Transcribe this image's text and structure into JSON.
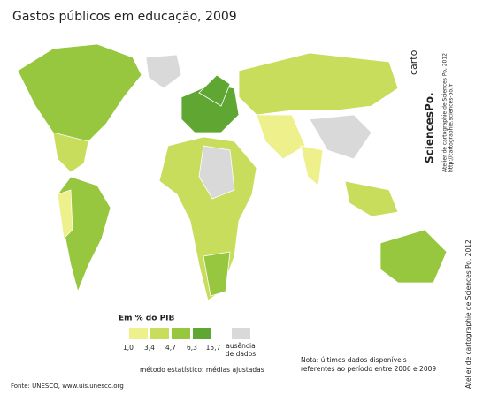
{
  "title": "Gastos públicos em educação, 2009",
  "legend": {
    "title": "Em % do PIB",
    "breaks": [
      "1,0",
      "3,4",
      "4,7",
      "6,3",
      "15,7"
    ],
    "colors": [
      "#eef08c",
      "#c9dd5c",
      "#97c63f",
      "#5fa732"
    ],
    "no_data": [
      "ausência",
      "de dados"
    ],
    "no_data_color": "#d9d9d9"
  },
  "method": "método estatístico: médias ajustadas",
  "note": [
    "Nota: últimos dados disponíveis",
    "referentes ao período entre 2006 e 2009"
  ],
  "source": "Fonte: UNESCO, www.uis.unesco.org",
  "credits": {
    "brand": "carto",
    "logo": "SciencesPo.",
    "atelier": "Atelier de cartographie de Sciences Po, 2012",
    "url": "http://cartographie.sciences-po.fr",
    "side": "Atelier de cartographie de Sciences Po, 2012"
  }
}
